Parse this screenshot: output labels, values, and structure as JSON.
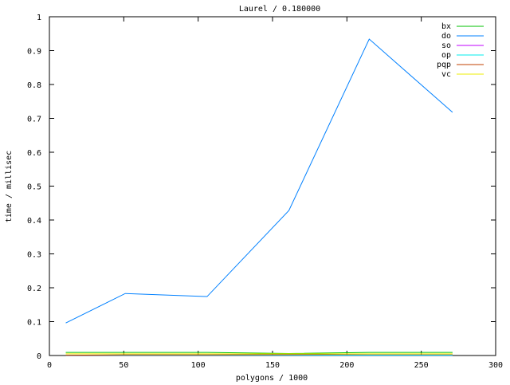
{
  "chart_data": {
    "type": "line",
    "title": "Laurel / 0.180000",
    "xlabel": "polygons / 1000",
    "ylabel": "time / millisec",
    "xlim": [
      0,
      300
    ],
    "ylim": [
      0,
      1
    ],
    "xticks": [
      "0",
      "50",
      "100",
      "150",
      "200",
      "250",
      "300"
    ],
    "yticks": [
      "0",
      "0.1",
      "0.2",
      "0.3",
      "0.4",
      "0.5",
      "0.6",
      "0.7",
      "0.8",
      "0.9",
      "1"
    ],
    "grid": false,
    "legend": "top-right",
    "x": [
      11,
      51,
      106,
      161,
      215,
      271
    ],
    "series": [
      {
        "name": "bx",
        "color": "#00c000",
        "values": [
          0.009,
          0.009,
          0.009,
          0.006,
          0.009,
          0.009
        ]
      },
      {
        "name": "do",
        "color": "#0080ff",
        "values": [
          0.096,
          0.183,
          0.174,
          0.428,
          0.934,
          0.718
        ]
      },
      {
        "name": "so",
        "color": "#c000ff",
        "values": [
          0.001,
          0.001,
          0.001,
          0.001,
          0.001,
          0.001
        ]
      },
      {
        "name": "op",
        "color": "#00eeee",
        "values": [
          0.001,
          0.001,
          0.001,
          0.001,
          0.001,
          0.001
        ]
      },
      {
        "name": "pqp",
        "color": "#c04000",
        "values": [
          0.001,
          0.002,
          0.002,
          0.003,
          0.004,
          0.004
        ]
      },
      {
        "name": "vc",
        "color": "#eeee00",
        "values": [
          0.005,
          0.005,
          0.005,
          0.005,
          0.005,
          0.005
        ]
      }
    ]
  }
}
